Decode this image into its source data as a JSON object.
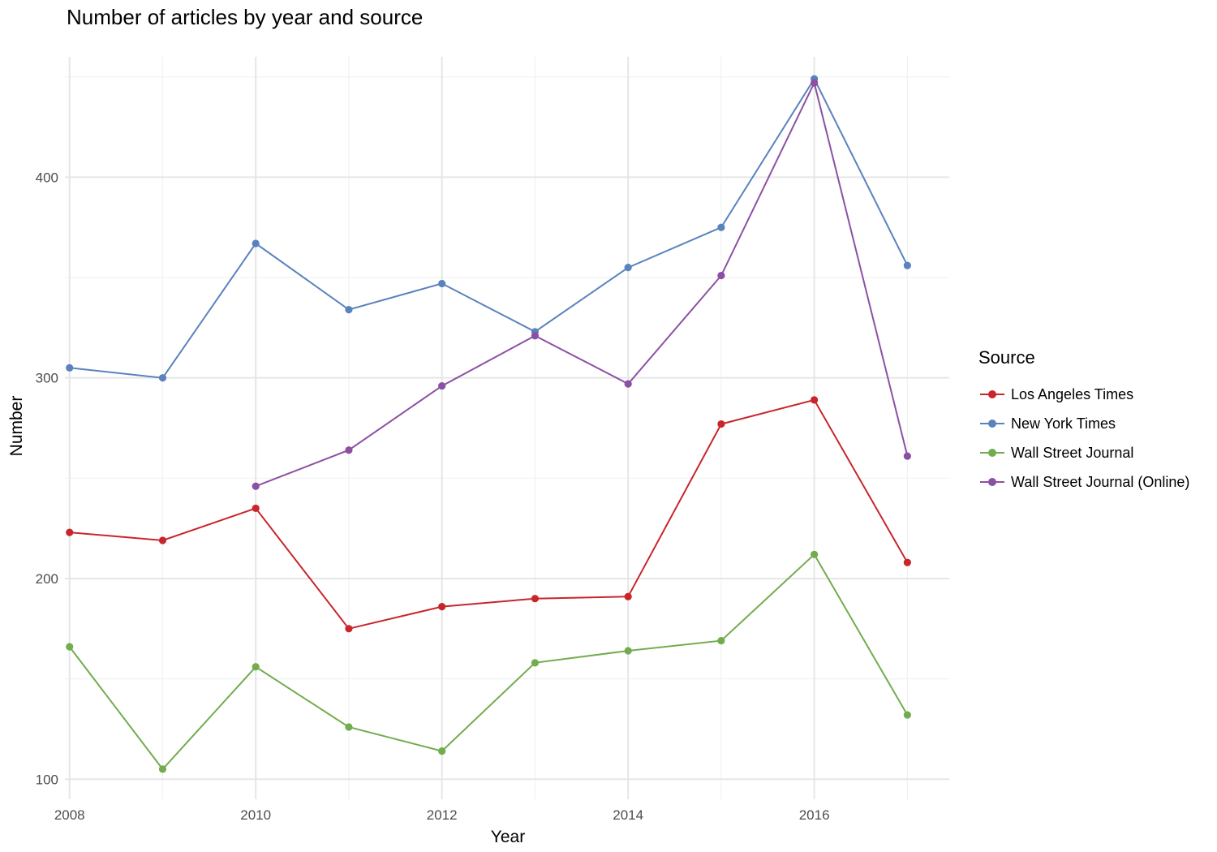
{
  "chart_data": {
    "type": "line",
    "title": "Number of articles by year and source",
    "xlabel": "Year",
    "ylabel": "Number",
    "xlim": [
      2007.95,
      2017.45
    ],
    "ylim": [
      90,
      460
    ],
    "x_ticks": [
      2008,
      2010,
      2012,
      2014,
      2016
    ],
    "y_ticks": [
      100,
      200,
      300,
      400
    ],
    "grid": true,
    "legend_title": "Source",
    "legend_position": "right",
    "series": [
      {
        "name": "Los Angeles Times",
        "color": "#c8262b",
        "points": [
          [
            2008,
            223
          ],
          [
            2009,
            219
          ],
          [
            2010,
            235
          ],
          [
            2011,
            175
          ],
          [
            2012,
            186
          ],
          [
            2013,
            190
          ],
          [
            2014,
            191
          ],
          [
            2015,
            277
          ],
          [
            2016,
            289
          ],
          [
            2017,
            208
          ]
        ]
      },
      {
        "name": "New York Times",
        "color": "#5a82bd",
        "points": [
          [
            2008,
            305
          ],
          [
            2009,
            300
          ],
          [
            2010,
            367
          ],
          [
            2011,
            334
          ],
          [
            2012,
            347
          ],
          [
            2013,
            323
          ],
          [
            2014,
            355
          ],
          [
            2015,
            375
          ],
          [
            2016,
            449
          ],
          [
            2017,
            356
          ]
        ]
      },
      {
        "name": "Wall Street Journal",
        "color": "#72ac4f",
        "points": [
          [
            2008,
            166
          ],
          [
            2009,
            105
          ],
          [
            2010,
            156
          ],
          [
            2011,
            126
          ],
          [
            2012,
            114
          ],
          [
            2013,
            158
          ],
          [
            2014,
            164
          ],
          [
            2015,
            169
          ],
          [
            2016,
            212
          ],
          [
            2017,
            132
          ]
        ]
      },
      {
        "name": "Wall Street Journal (Online)",
        "color": "#8c50a3",
        "points": [
          [
            2010,
            246
          ],
          [
            2011,
            264
          ],
          [
            2012,
            296
          ],
          [
            2013,
            321
          ],
          [
            2014,
            297
          ],
          [
            2015,
            351
          ],
          [
            2016,
            447
          ],
          [
            2017,
            261
          ]
        ]
      }
    ]
  }
}
